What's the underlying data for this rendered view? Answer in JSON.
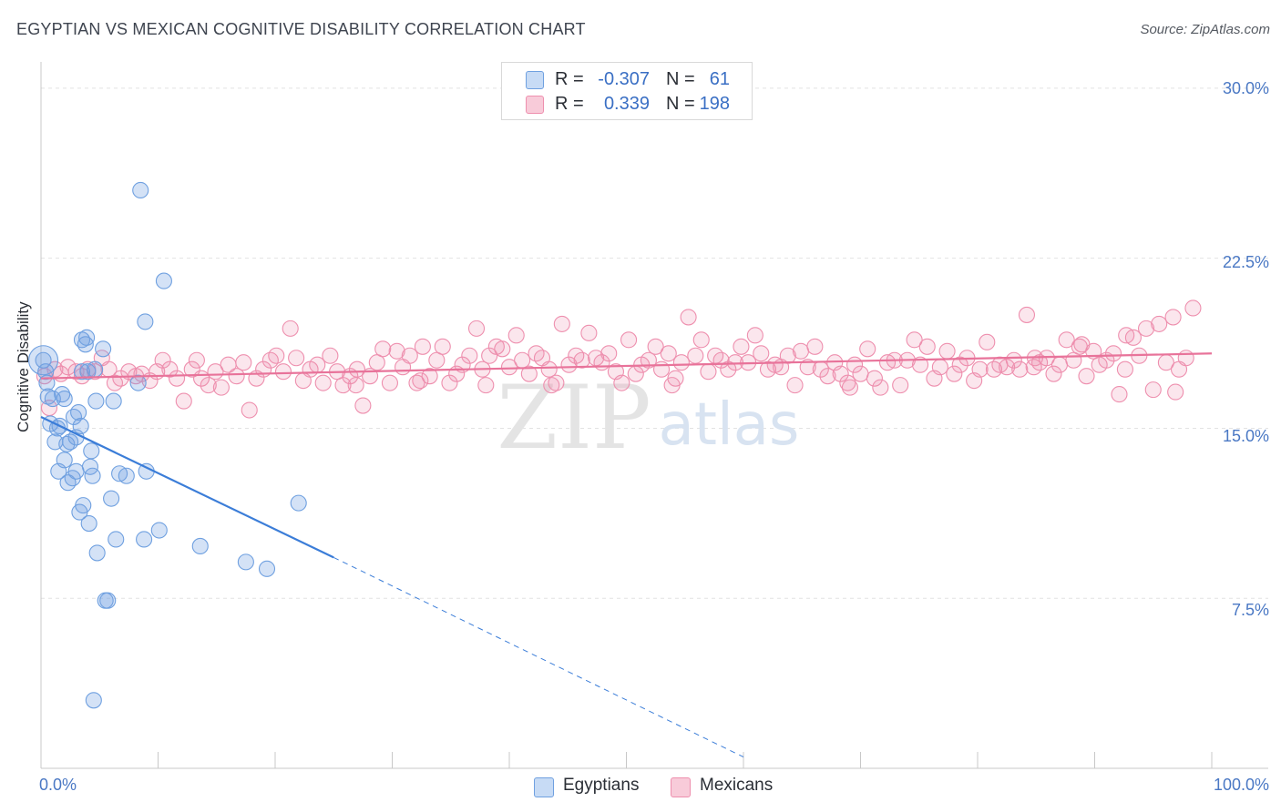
{
  "header": {
    "title": "EGYPTIAN VS MEXICAN COGNITIVE DISABILITY CORRELATION CHART",
    "source": "Source: ZipAtlas.com"
  },
  "watermark": {
    "zip": "ZIP",
    "atlas": "atlas"
  },
  "legend": {
    "rows": [
      {
        "r_label": "R =",
        "r_value": "-0.307",
        "n_label": "N =",
        "n_value": "61",
        "color": "#6fa0e0"
      },
      {
        "r_label": "R =",
        "r_value": "0.339",
        "n_label": "N =",
        "n_value": "198",
        "color": "#ee8fae"
      }
    ]
  },
  "bottom_legend": [
    {
      "label": "Egyptians",
      "color": "#6fa0e0"
    },
    {
      "label": "Mexicans",
      "color": "#ee8fae"
    }
  ],
  "chart_data": {
    "type": "scatter",
    "title": "EGYPTIAN VS MEXICAN COGNITIVE DISABILITY CORRELATION CHART",
    "ylabel": "Cognitive Disability",
    "xlabel": "",
    "xlim": [
      0,
      100
    ],
    "ylim": [
      0,
      31
    ],
    "y_ticks": [
      "30.0%",
      "22.5%",
      "15.0%",
      "7.5%"
    ],
    "y_tick_values": [
      30.0,
      22.5,
      15.0,
      7.5
    ],
    "x_tick_labels": [
      "0.0%",
      "100.0%"
    ],
    "grid": true,
    "legend_position": "top-center",
    "series": [
      {
        "name": "Egyptians",
        "color": "#6fa0e0",
        "trend": {
          "x": [
            0,
            25
          ],
          "y": [
            15.5,
            9.3
          ],
          "dashed_to": [
            60,
            0.5
          ]
        },
        "points": [
          [
            0.2,
            18.0
          ],
          [
            0.4,
            17.5
          ],
          [
            0.5,
            17.0
          ],
          [
            0.6,
            16.4
          ],
          [
            0.8,
            15.2
          ],
          [
            1.0,
            16.3
          ],
          [
            1.2,
            14.4
          ],
          [
            1.4,
            15.0
          ],
          [
            1.5,
            13.1
          ],
          [
            1.6,
            15.1
          ],
          [
            1.8,
            16.5
          ],
          [
            2.0,
            16.3
          ],
          [
            2.0,
            13.6
          ],
          [
            2.2,
            14.3
          ],
          [
            2.3,
            12.6
          ],
          [
            2.5,
            14.4
          ],
          [
            2.7,
            12.8
          ],
          [
            2.8,
            15.5
          ],
          [
            3.0,
            13.1
          ],
          [
            3.0,
            14.6
          ],
          [
            3.2,
            15.7
          ],
          [
            3.3,
            11.3
          ],
          [
            3.4,
            15.1
          ],
          [
            3.5,
            18.9
          ],
          [
            3.5,
            17.5
          ],
          [
            3.6,
            11.6
          ],
          [
            3.8,
            18.7
          ],
          [
            3.9,
            19.0
          ],
          [
            4.0,
            17.5
          ],
          [
            4.1,
            10.8
          ],
          [
            4.2,
            13.3
          ],
          [
            4.3,
            14.0
          ],
          [
            4.4,
            12.9
          ],
          [
            4.5,
            3.0
          ],
          [
            4.6,
            17.6
          ],
          [
            4.7,
            16.2
          ],
          [
            4.8,
            9.5
          ],
          [
            5.3,
            18.5
          ],
          [
            5.5,
            7.4
          ],
          [
            5.7,
            7.4
          ],
          [
            6.0,
            11.9
          ],
          [
            6.2,
            16.2
          ],
          [
            6.4,
            10.1
          ],
          [
            6.7,
            13.0
          ],
          [
            7.3,
            12.9
          ],
          [
            8.3,
            17.0
          ],
          [
            8.5,
            25.5
          ],
          [
            8.8,
            10.1
          ],
          [
            8.9,
            19.7
          ],
          [
            9.0,
            13.1
          ],
          [
            10.1,
            10.5
          ],
          [
            10.5,
            21.5
          ],
          [
            13.6,
            9.8
          ],
          [
            17.5,
            9.1
          ],
          [
            19.3,
            8.8
          ],
          [
            22.0,
            11.7
          ]
        ]
      },
      {
        "name": "Mexicans",
        "color": "#ee8fae",
        "trend": {
          "x": [
            0,
            100
          ],
          "y": [
            17.2,
            18.3
          ]
        },
        "points": [
          [
            0.3,
            17.3
          ],
          [
            0.7,
            15.9
          ],
          [
            1.2,
            17.6
          ],
          [
            1.7,
            17.4
          ],
          [
            2.3,
            17.7
          ],
          [
            3.0,
            17.5
          ],
          [
            3.5,
            17.3
          ],
          [
            4.0,
            17.6
          ],
          [
            4.6,
            17.5
          ],
          [
            5.2,
            18.1
          ],
          [
            5.8,
            17.6
          ],
          [
            6.3,
            17.0
          ],
          [
            6.8,
            17.2
          ],
          [
            7.5,
            17.5
          ],
          [
            8.1,
            17.3
          ],
          [
            8.6,
            17.4
          ],
          [
            9.3,
            17.1
          ],
          [
            9.9,
            17.5
          ],
          [
            10.4,
            18.0
          ],
          [
            11.0,
            17.6
          ],
          [
            11.6,
            17.2
          ],
          [
            12.2,
            16.2
          ],
          [
            12.9,
            17.6
          ],
          [
            13.3,
            18.0
          ],
          [
            13.7,
            17.2
          ],
          [
            14.3,
            16.9
          ],
          [
            14.9,
            17.5
          ],
          [
            15.4,
            16.8
          ],
          [
            16.0,
            17.8
          ],
          [
            16.7,
            17.3
          ],
          [
            17.3,
            17.9
          ],
          [
            17.8,
            15.8
          ],
          [
            18.4,
            17.2
          ],
          [
            19.0,
            17.6
          ],
          [
            19.6,
            18.0
          ],
          [
            20.1,
            18.2
          ],
          [
            20.7,
            17.5
          ],
          [
            21.3,
            19.4
          ],
          [
            21.8,
            18.1
          ],
          [
            22.4,
            17.1
          ],
          [
            23.0,
            17.6
          ],
          [
            23.6,
            17.8
          ],
          [
            24.1,
            17.0
          ],
          [
            24.7,
            18.2
          ],
          [
            25.3,
            17.5
          ],
          [
            25.8,
            16.9
          ],
          [
            26.4,
            17.3
          ],
          [
            27.0,
            17.6
          ],
          [
            27.5,
            16.0
          ],
          [
            28.1,
            17.3
          ],
          [
            28.7,
            17.9
          ],
          [
            29.2,
            18.5
          ],
          [
            29.8,
            17.0
          ],
          [
            30.4,
            18.4
          ],
          [
            30.9,
            17.7
          ],
          [
            31.5,
            18.2
          ],
          [
            32.1,
            17.0
          ],
          [
            32.6,
            18.6
          ],
          [
            33.2,
            17.3
          ],
          [
            33.8,
            18.0
          ],
          [
            34.3,
            18.6
          ],
          [
            34.9,
            17.0
          ],
          [
            35.5,
            17.4
          ],
          [
            36.0,
            17.8
          ],
          [
            36.6,
            18.2
          ],
          [
            37.2,
            19.4
          ],
          [
            37.7,
            17.6
          ],
          [
            38.3,
            18.2
          ],
          [
            38.9,
            18.6
          ],
          [
            39.4,
            18.5
          ],
          [
            40.0,
            17.7
          ],
          [
            40.6,
            19.1
          ],
          [
            41.1,
            18.0
          ],
          [
            41.7,
            17.4
          ],
          [
            42.3,
            18.3
          ],
          [
            42.8,
            18.1
          ],
          [
            43.4,
            17.6
          ],
          [
            44.0,
            17.0
          ],
          [
            44.5,
            19.6
          ],
          [
            45.1,
            17.8
          ],
          [
            45.7,
            18.2
          ],
          [
            46.2,
            18.0
          ],
          [
            46.8,
            19.2
          ],
          [
            47.4,
            18.1
          ],
          [
            47.9,
            17.9
          ],
          [
            48.5,
            18.3
          ],
          [
            49.1,
            17.5
          ],
          [
            49.6,
            17.0
          ],
          [
            50.2,
            18.9
          ],
          [
            50.8,
            17.4
          ],
          [
            51.3,
            17.8
          ],
          [
            51.9,
            18.0
          ],
          [
            52.5,
            18.6
          ],
          [
            53.0,
            17.6
          ],
          [
            53.6,
            18.3
          ],
          [
            54.2,
            17.2
          ],
          [
            54.7,
            17.9
          ],
          [
            55.3,
            19.9
          ],
          [
            55.9,
            18.2
          ],
          [
            56.4,
            18.9
          ],
          [
            57.0,
            17.5
          ],
          [
            57.6,
            18.2
          ],
          [
            58.1,
            18.0
          ],
          [
            58.7,
            17.6
          ],
          [
            59.3,
            17.9
          ],
          [
            59.8,
            18.6
          ],
          [
            60.4,
            17.9
          ],
          [
            61.0,
            19.1
          ],
          [
            61.5,
            18.3
          ],
          [
            62.1,
            17.6
          ],
          [
            62.7,
            17.8
          ],
          [
            63.2,
            17.7
          ],
          [
            63.8,
            18.2
          ],
          [
            64.4,
            16.9
          ],
          [
            64.9,
            18.4
          ],
          [
            65.5,
            17.7
          ],
          [
            66.1,
            18.6
          ],
          [
            66.6,
            17.6
          ],
          [
            67.2,
            17.3
          ],
          [
            67.8,
            17.9
          ],
          [
            68.3,
            17.4
          ],
          [
            68.9,
            17.0
          ],
          [
            69.5,
            17.8
          ],
          [
            70.0,
            17.4
          ],
          [
            70.6,
            18.5
          ],
          [
            71.2,
            17.2
          ],
          [
            71.7,
            16.8
          ],
          [
            72.3,
            17.9
          ],
          [
            72.9,
            18.0
          ],
          [
            73.4,
            16.9
          ],
          [
            74.0,
            18.0
          ],
          [
            74.6,
            18.9
          ],
          [
            75.1,
            17.8
          ],
          [
            75.7,
            18.6
          ],
          [
            76.3,
            17.2
          ],
          [
            76.8,
            17.7
          ],
          [
            77.4,
            18.4
          ],
          [
            78.0,
            17.4
          ],
          [
            78.5,
            17.8
          ],
          [
            79.1,
            18.1
          ],
          [
            79.7,
            17.1
          ],
          [
            80.2,
            17.6
          ],
          [
            80.8,
            18.8
          ],
          [
            81.4,
            17.6
          ],
          [
            81.9,
            17.8
          ],
          [
            82.5,
            17.7
          ],
          [
            83.1,
            18.0
          ],
          [
            83.6,
            17.6
          ],
          [
            84.2,
            20.0
          ],
          [
            84.8,
            17.7
          ],
          [
            85.3,
            17.9
          ],
          [
            85.9,
            18.1
          ],
          [
            86.5,
            17.4
          ],
          [
            87.0,
            17.8
          ],
          [
            87.6,
            18.9
          ],
          [
            88.2,
            18.0
          ],
          [
            88.7,
            18.6
          ],
          [
            89.3,
            17.3
          ],
          [
            89.9,
            18.4
          ],
          [
            90.4,
            17.8
          ],
          [
            91.0,
            18.0
          ],
          [
            91.6,
            18.3
          ],
          [
            92.1,
            16.5
          ],
          [
            92.7,
            19.1
          ],
          [
            93.3,
            19.0
          ],
          [
            93.8,
            18.2
          ],
          [
            94.4,
            19.4
          ],
          [
            95.0,
            16.7
          ],
          [
            95.5,
            19.6
          ],
          [
            96.1,
            17.9
          ],
          [
            96.7,
            19.9
          ],
          [
            97.2,
            17.6
          ],
          [
            97.8,
            18.1
          ],
          [
            98.4,
            20.3
          ],
          [
            53.9,
            16.9
          ],
          [
            69.1,
            16.8
          ],
          [
            84.9,
            18.1
          ],
          [
            88.9,
            18.7
          ],
          [
            92.6,
            17.6
          ],
          [
            96.9,
            16.6
          ],
          [
            43.6,
            16.9
          ],
          [
            38.0,
            16.9
          ],
          [
            26.9,
            16.9
          ],
          [
            32.4,
            17.1
          ]
        ]
      }
    ]
  }
}
